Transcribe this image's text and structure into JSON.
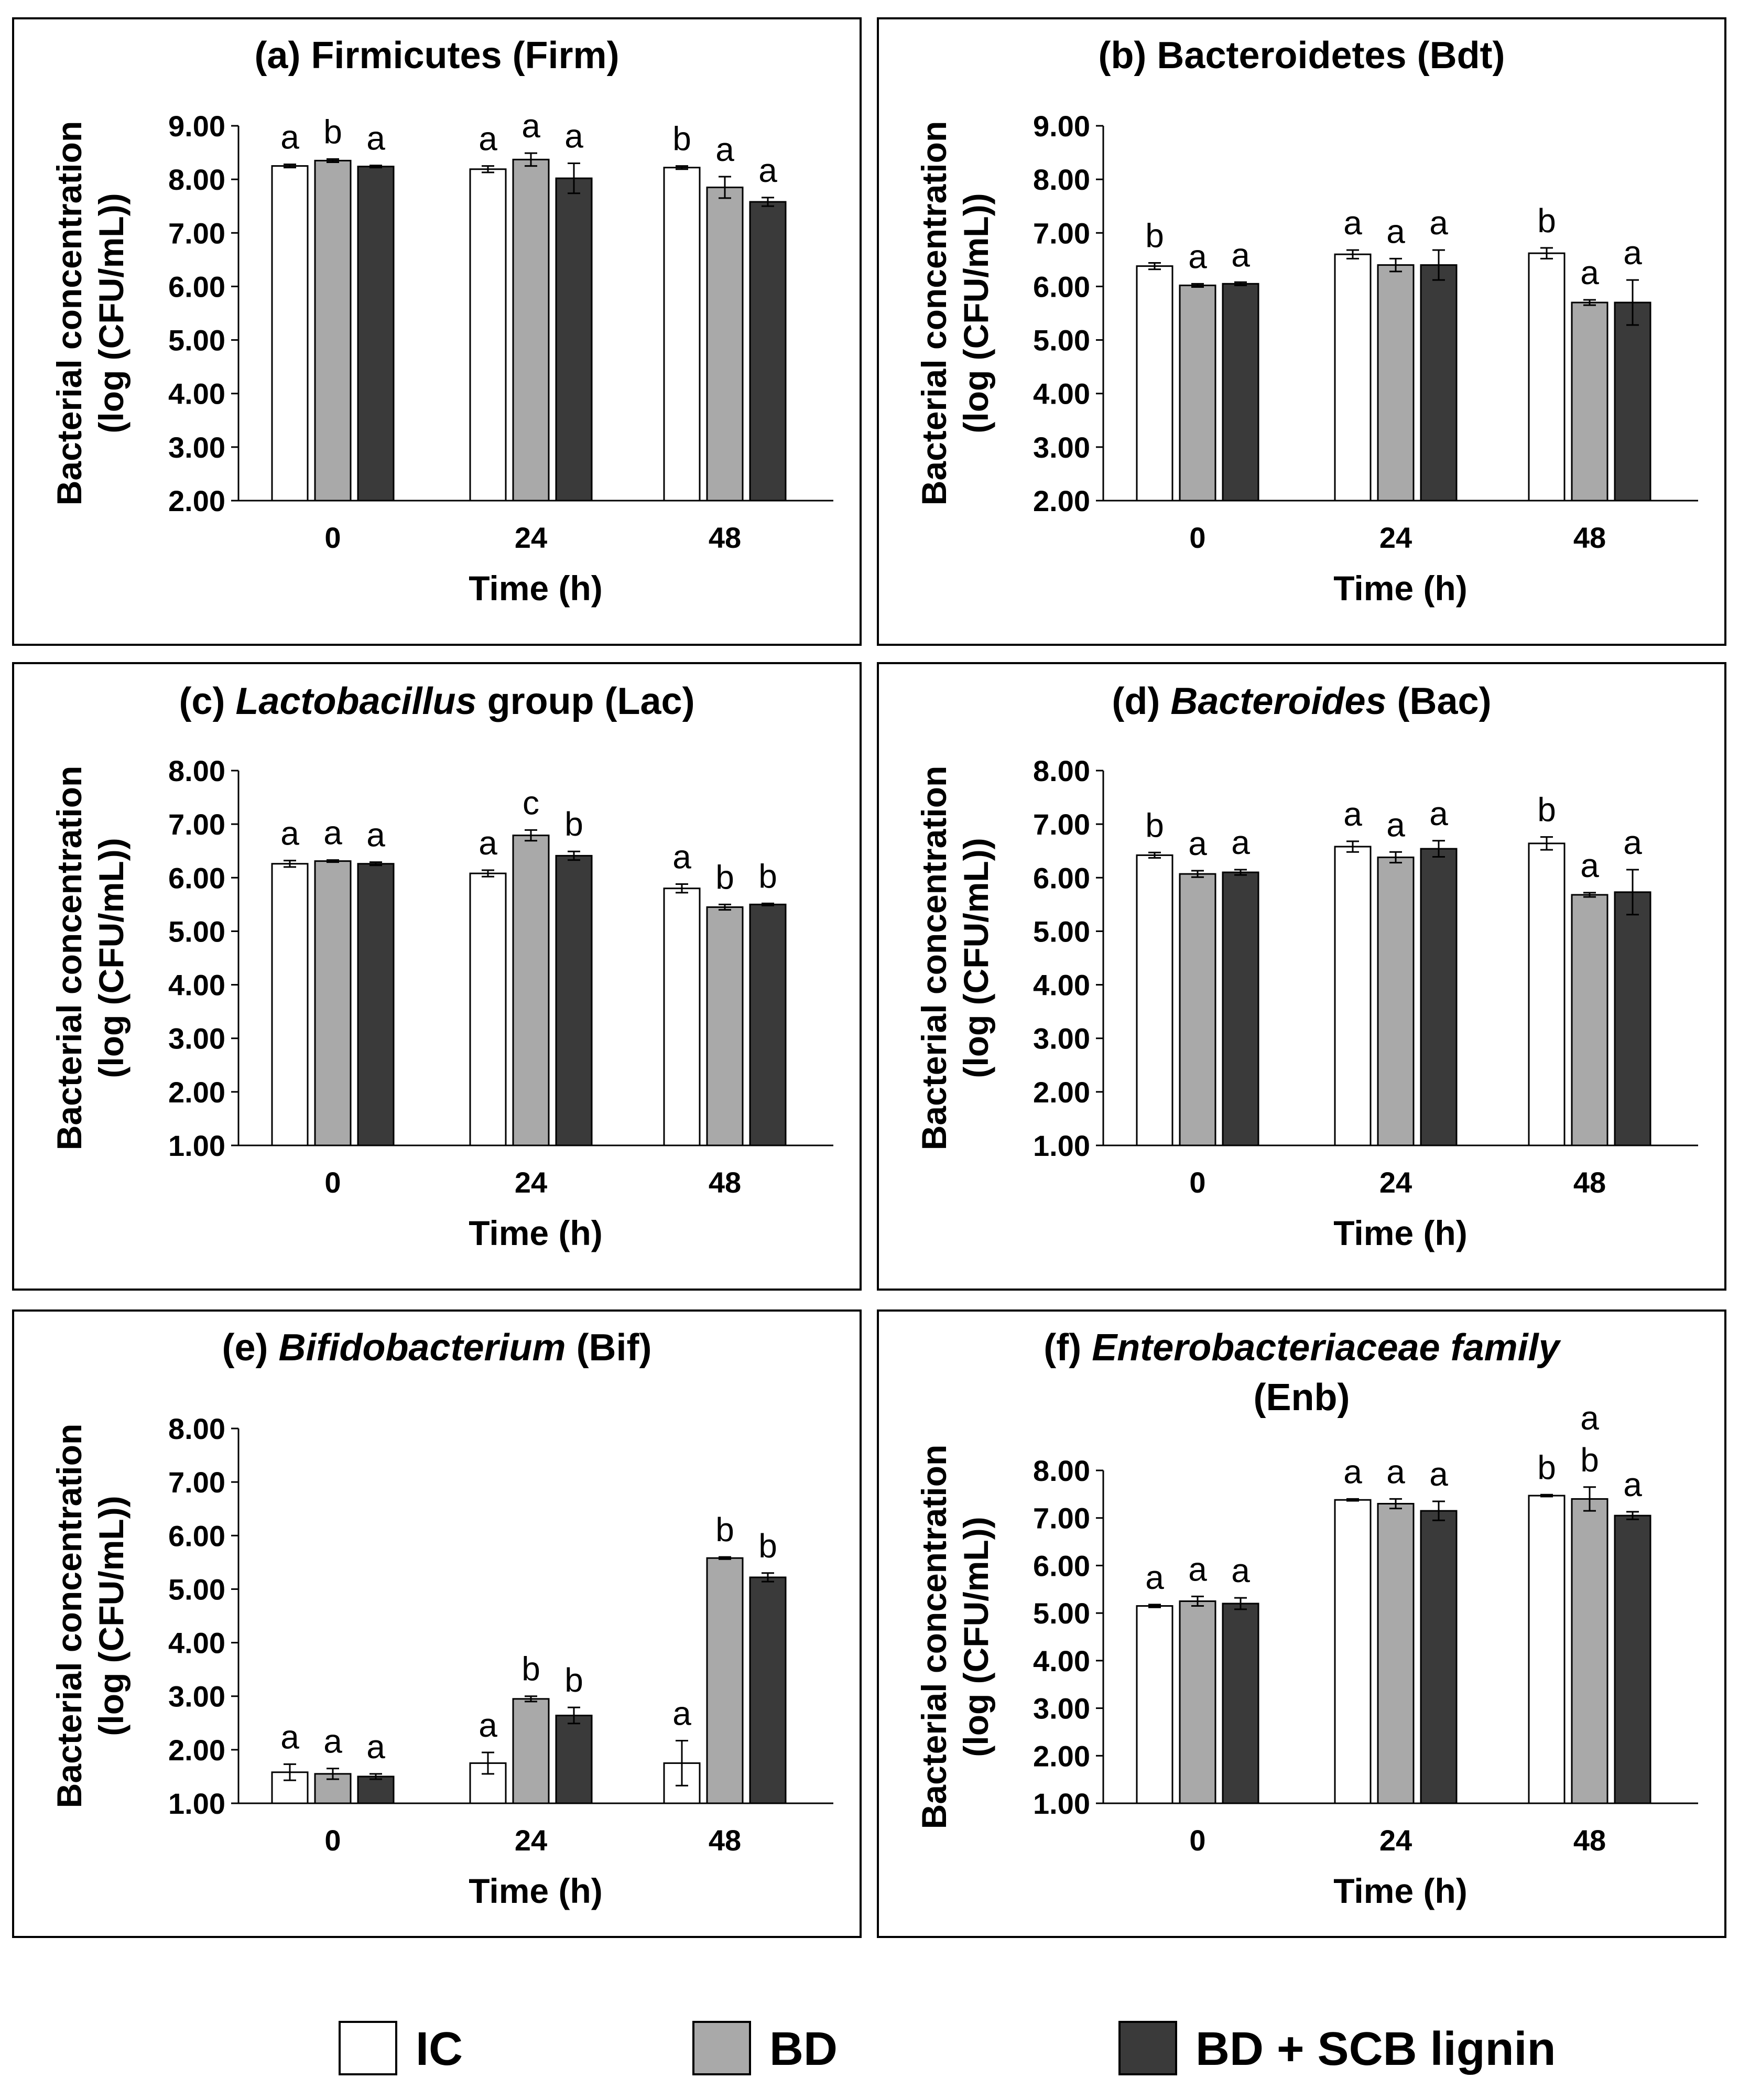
{
  "colors": {
    "series": [
      "#ffffff",
      "#a9a9a9",
      "#3a3a3a"
    ],
    "frame": "#000000",
    "text": "#000000"
  },
  "legend": {
    "items": [
      {
        "label": "IC"
      },
      {
        "label": "BD"
      },
      {
        "label": "BD + SCB lignin"
      }
    ]
  },
  "chart_data": [
    {
      "type": "bar",
      "title": [
        [
          {
            "text": "(a) Firmicutes (Firm)",
            "italic": false
          }
        ]
      ],
      "xlabel": "Time (h)",
      "ylabel": [
        "Bacterial concentration",
        "(log (CFU/mL))"
      ],
      "categories": [
        "0",
        "24",
        "48"
      ],
      "ylim": [
        2,
        9
      ],
      "yticks": [
        "2.00",
        "3.00",
        "4.00",
        "5.00",
        "6.00",
        "7.00",
        "8.00",
        "9.00"
      ],
      "series": [
        {
          "name": "IC",
          "values": [
            8.25,
            8.19,
            8.22
          ],
          "errors": [
            0.03,
            0.06,
            0.03
          ],
          "labels": [
            "a",
            "a",
            "b"
          ]
        },
        {
          "name": "BD",
          "values": [
            8.35,
            8.37,
            7.85
          ],
          "errors": [
            0.03,
            0.12,
            0.2
          ],
          "labels": [
            "b",
            "a",
            "a"
          ]
        },
        {
          "name": "BD + SCB lignin",
          "values": [
            8.24,
            8.02,
            7.58
          ],
          "errors": [
            0.02,
            0.28,
            0.08
          ],
          "labels": [
            "a",
            "a",
            "a"
          ]
        }
      ]
    },
    {
      "type": "bar",
      "title": [
        [
          {
            "text": "(b) Bacteroidetes (Bdt)",
            "italic": false
          }
        ]
      ],
      "xlabel": "Time (h)",
      "ylabel": [
        "Bacterial concentration",
        "(log (CFU/mL))"
      ],
      "categories": [
        "0",
        "24",
        "48"
      ],
      "ylim": [
        2,
        9
      ],
      "yticks": [
        "2.00",
        "3.00",
        "4.00",
        "5.00",
        "6.00",
        "7.00",
        "8.00",
        "9.00"
      ],
      "series": [
        {
          "name": "IC",
          "values": [
            6.38,
            6.6,
            6.62
          ],
          "errors": [
            0.06,
            0.08,
            0.1
          ],
          "labels": [
            "b",
            "a",
            "b"
          ]
        },
        {
          "name": "BD",
          "values": [
            6.02,
            6.4,
            5.7
          ],
          "errors": [
            0.03,
            0.12,
            0.05
          ],
          "labels": [
            "a",
            "a",
            "a"
          ]
        },
        {
          "name": "BD + SCB lignin",
          "values": [
            6.05,
            6.4,
            5.7
          ],
          "errors": [
            0.03,
            0.28,
            0.42
          ],
          "labels": [
            "a",
            "a",
            "a"
          ]
        }
      ]
    },
    {
      "type": "bar",
      "title": [
        [
          {
            "text": "(c) ",
            "italic": false
          },
          {
            "text": "Lactobacillus",
            "italic": true
          },
          {
            "text": " group (Lac)",
            "italic": false
          }
        ]
      ],
      "xlabel": "Time (h)",
      "ylabel": [
        "Bacterial concentration",
        "(log (CFU/mL))"
      ],
      "categories": [
        "0",
        "24",
        "48"
      ],
      "ylim": [
        1,
        8
      ],
      "yticks": [
        "1.00",
        "2.00",
        "3.00",
        "4.00",
        "5.00",
        "6.00",
        "7.00",
        "8.00"
      ],
      "series": [
        {
          "name": "IC",
          "values": [
            6.26,
            6.08,
            5.8
          ],
          "errors": [
            0.06,
            0.06,
            0.08
          ],
          "labels": [
            "a",
            "a",
            "a"
          ]
        },
        {
          "name": "BD",
          "values": [
            6.31,
            6.79,
            5.45
          ],
          "errors": [
            0.02,
            0.1,
            0.05
          ],
          "labels": [
            "a",
            "c",
            "b"
          ]
        },
        {
          "name": "BD + SCB lignin",
          "values": [
            6.26,
            6.41,
            5.5
          ],
          "errors": [
            0.03,
            0.08,
            0.02
          ],
          "labels": [
            "a",
            "b",
            "b"
          ]
        }
      ]
    },
    {
      "type": "bar",
      "title": [
        [
          {
            "text": "(d) ",
            "italic": false
          },
          {
            "text": "Bacteroides",
            "italic": true
          },
          {
            "text": " (Bac)",
            "italic": false
          }
        ]
      ],
      "xlabel": "Time (h)",
      "ylabel": [
        "Bacterial concentration",
        "(log (CFU/mL))"
      ],
      "categories": [
        "0",
        "24",
        "48"
      ],
      "ylim": [
        1,
        8
      ],
      "yticks": [
        "1.00",
        "2.00",
        "3.00",
        "4.00",
        "5.00",
        "6.00",
        "7.00",
        "8.00"
      ],
      "series": [
        {
          "name": "IC",
          "values": [
            6.42,
            6.58,
            6.64
          ],
          "errors": [
            0.05,
            0.1,
            0.12
          ],
          "labels": [
            "b",
            "a",
            "b"
          ]
        },
        {
          "name": "BD",
          "values": [
            6.07,
            6.38,
            5.68
          ],
          "errors": [
            0.06,
            0.1,
            0.04
          ],
          "labels": [
            "a",
            "a",
            "a"
          ]
        },
        {
          "name": "BD + SCB lignin",
          "values": [
            6.1,
            6.54,
            5.73
          ],
          "errors": [
            0.05,
            0.15,
            0.42
          ],
          "labels": [
            "a",
            "a",
            "a"
          ]
        }
      ]
    },
    {
      "type": "bar",
      "title": [
        [
          {
            "text": "(e) ",
            "italic": false
          },
          {
            "text": "Bifidobacterium",
            "italic": true
          },
          {
            "text": " (Bif)",
            "italic": false
          }
        ]
      ],
      "xlabel": "Time (h)",
      "ylabel": [
        "Bacterial concentration",
        "(log (CFU/mL))"
      ],
      "categories": [
        "0",
        "24",
        "48"
      ],
      "ylim": [
        1,
        8
      ],
      "yticks": [
        "1.00",
        "2.00",
        "3.00",
        "4.00",
        "5.00",
        "6.00",
        "7.00",
        "8.00"
      ],
      "series": [
        {
          "name": "IC",
          "values": [
            1.58,
            1.75,
            1.75
          ],
          "errors": [
            0.15,
            0.2,
            0.42
          ],
          "labels": [
            "a",
            "a",
            "a"
          ]
        },
        {
          "name": "BD",
          "values": [
            1.55,
            2.95,
            5.58
          ],
          "errors": [
            0.1,
            0.05,
            0.02
          ],
          "labels": [
            "a",
            "b",
            "b"
          ]
        },
        {
          "name": "BD + SCB lignin",
          "values": [
            1.5,
            2.64,
            5.22
          ],
          "errors": [
            0.05,
            0.15,
            0.08
          ],
          "labels": [
            "a",
            "b",
            "b"
          ]
        }
      ]
    },
    {
      "type": "bar",
      "title": [
        [
          {
            "text": "(f) ",
            "italic": false
          },
          {
            "text": "Enterobacteriaceae family",
            "italic": true
          }
        ],
        [
          {
            "text": "(Enb)",
            "italic": false
          }
        ]
      ],
      "xlabel": "Time (h)",
      "ylabel": [
        "Bacterial concentration",
        "(log (CFU/mL))"
      ],
      "categories": [
        "0",
        "24",
        "48"
      ],
      "ylim": [
        1,
        8
      ],
      "yticks": [
        "1.00",
        "2.00",
        "3.00",
        "4.00",
        "5.00",
        "6.00",
        "7.00",
        "8.00"
      ],
      "series": [
        {
          "name": "IC",
          "values": [
            5.15,
            7.38,
            7.47
          ],
          "errors": [
            0.03,
            0.02,
            0.02
          ],
          "labels": [
            "a",
            "a",
            "b"
          ]
        },
        {
          "name": "BD",
          "values": [
            5.25,
            7.3,
            7.4
          ],
          "errors": [
            0.1,
            0.1,
            0.25
          ],
          "labels": [
            "a",
            "a",
            "b a"
          ]
        },
        {
          "name": "BD + SCB lignin",
          "values": [
            5.2,
            7.15,
            7.05
          ],
          "errors": [
            0.12,
            0.2,
            0.08
          ],
          "labels": [
            "a",
            "a",
            "a"
          ]
        }
      ]
    }
  ]
}
